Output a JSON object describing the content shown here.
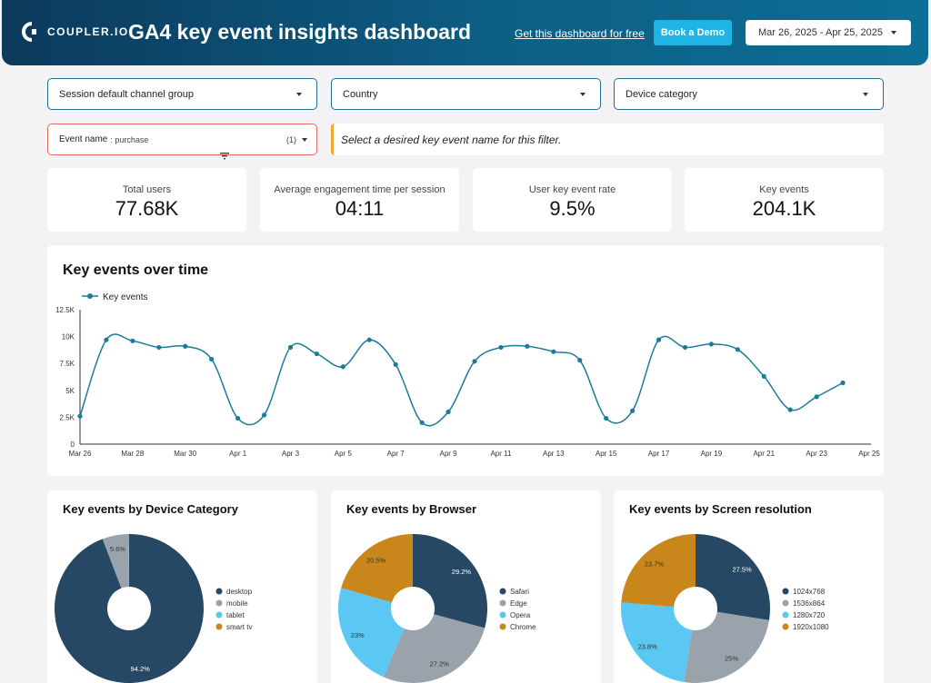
{
  "header": {
    "logo_text": "COUPLER.IO",
    "title": "GA4 key event insights dashboard",
    "free_link": "Get this dashboard for free",
    "demo_button": "Book a Demo",
    "date_range": "Mar 26, 2025 - Apr 25, 2025"
  },
  "filters": {
    "channel": "Session default channel group",
    "country": "Country",
    "device": "Device category",
    "event_label": "Event name",
    "event_value": ": purchase",
    "event_count": "(1)",
    "hint": "Select a desired key event name for this filter."
  },
  "kpis": [
    {
      "label": "Total users",
      "value": "77.68K"
    },
    {
      "label": "Average engagement time per session",
      "value": "04:11"
    },
    {
      "label": "User key event rate",
      "value": "9.5%"
    },
    {
      "label": "Key events",
      "value": "204.1K"
    }
  ],
  "colors": {
    "line": "#1a7c9a",
    "desktop": "#264864",
    "mobile": "#9aa3ab",
    "tablet": "#5ac8f2",
    "smart_tv": "#c9861a"
  },
  "chart_data": [
    {
      "type": "line",
      "title": "Key events over time",
      "legend": "Key events",
      "yticks": [
        "0",
        "2.5K",
        "5K",
        "7.5K",
        "10K",
        "12.5K"
      ],
      "ylim": [
        0,
        12500
      ],
      "xticks": [
        "Mar 26",
        "Mar 28",
        "Mar 30",
        "Apr 1",
        "Apr 3",
        "Apr 5",
        "Apr 7",
        "Apr 9",
        "Apr 11",
        "Apr 13",
        "Apr 15",
        "Apr 17",
        "Apr 19",
        "Apr 21",
        "Apr 23",
        "Apr 25"
      ],
      "series": [
        {
          "name": "Key events",
          "values": [
            2600,
            9700,
            9600,
            9000,
            9100,
            7900,
            2400,
            2700,
            9000,
            8400,
            7200,
            9700,
            7400,
            2000,
            3000,
            7700,
            9000,
            9100,
            8600,
            7800,
            2400,
            3100,
            9700,
            9000,
            9300,
            8800,
            6300,
            3200,
            4400,
            5700
          ]
        }
      ]
    },
    {
      "type": "pie",
      "title": "Key events by Device Category",
      "categories": [
        "desktop",
        "mobile",
        "tablet",
        "smart tv"
      ],
      "values": [
        94.2,
        5.6,
        0.1,
        0.1
      ],
      "labels": [
        "94.2%",
        "5.6%",
        "",
        ""
      ]
    },
    {
      "type": "pie",
      "title": "Key events by Browser",
      "categories": [
        "Safari",
        "Edge",
        "Opera",
        "Chrome"
      ],
      "values": [
        29.2,
        27.2,
        23,
        20.5
      ],
      "labels": [
        "29.2%",
        "27.2%",
        "23%",
        "20.5%"
      ]
    },
    {
      "type": "pie",
      "title": "Key events by Screen resolution",
      "categories": [
        "1024x768",
        "1536x864",
        "1280x720",
        "1920x1080"
      ],
      "values": [
        27.5,
        25,
        23.8,
        23.7
      ],
      "labels": [
        "27.5%",
        "25%",
        "23.8%",
        "23.7%"
      ]
    }
  ]
}
